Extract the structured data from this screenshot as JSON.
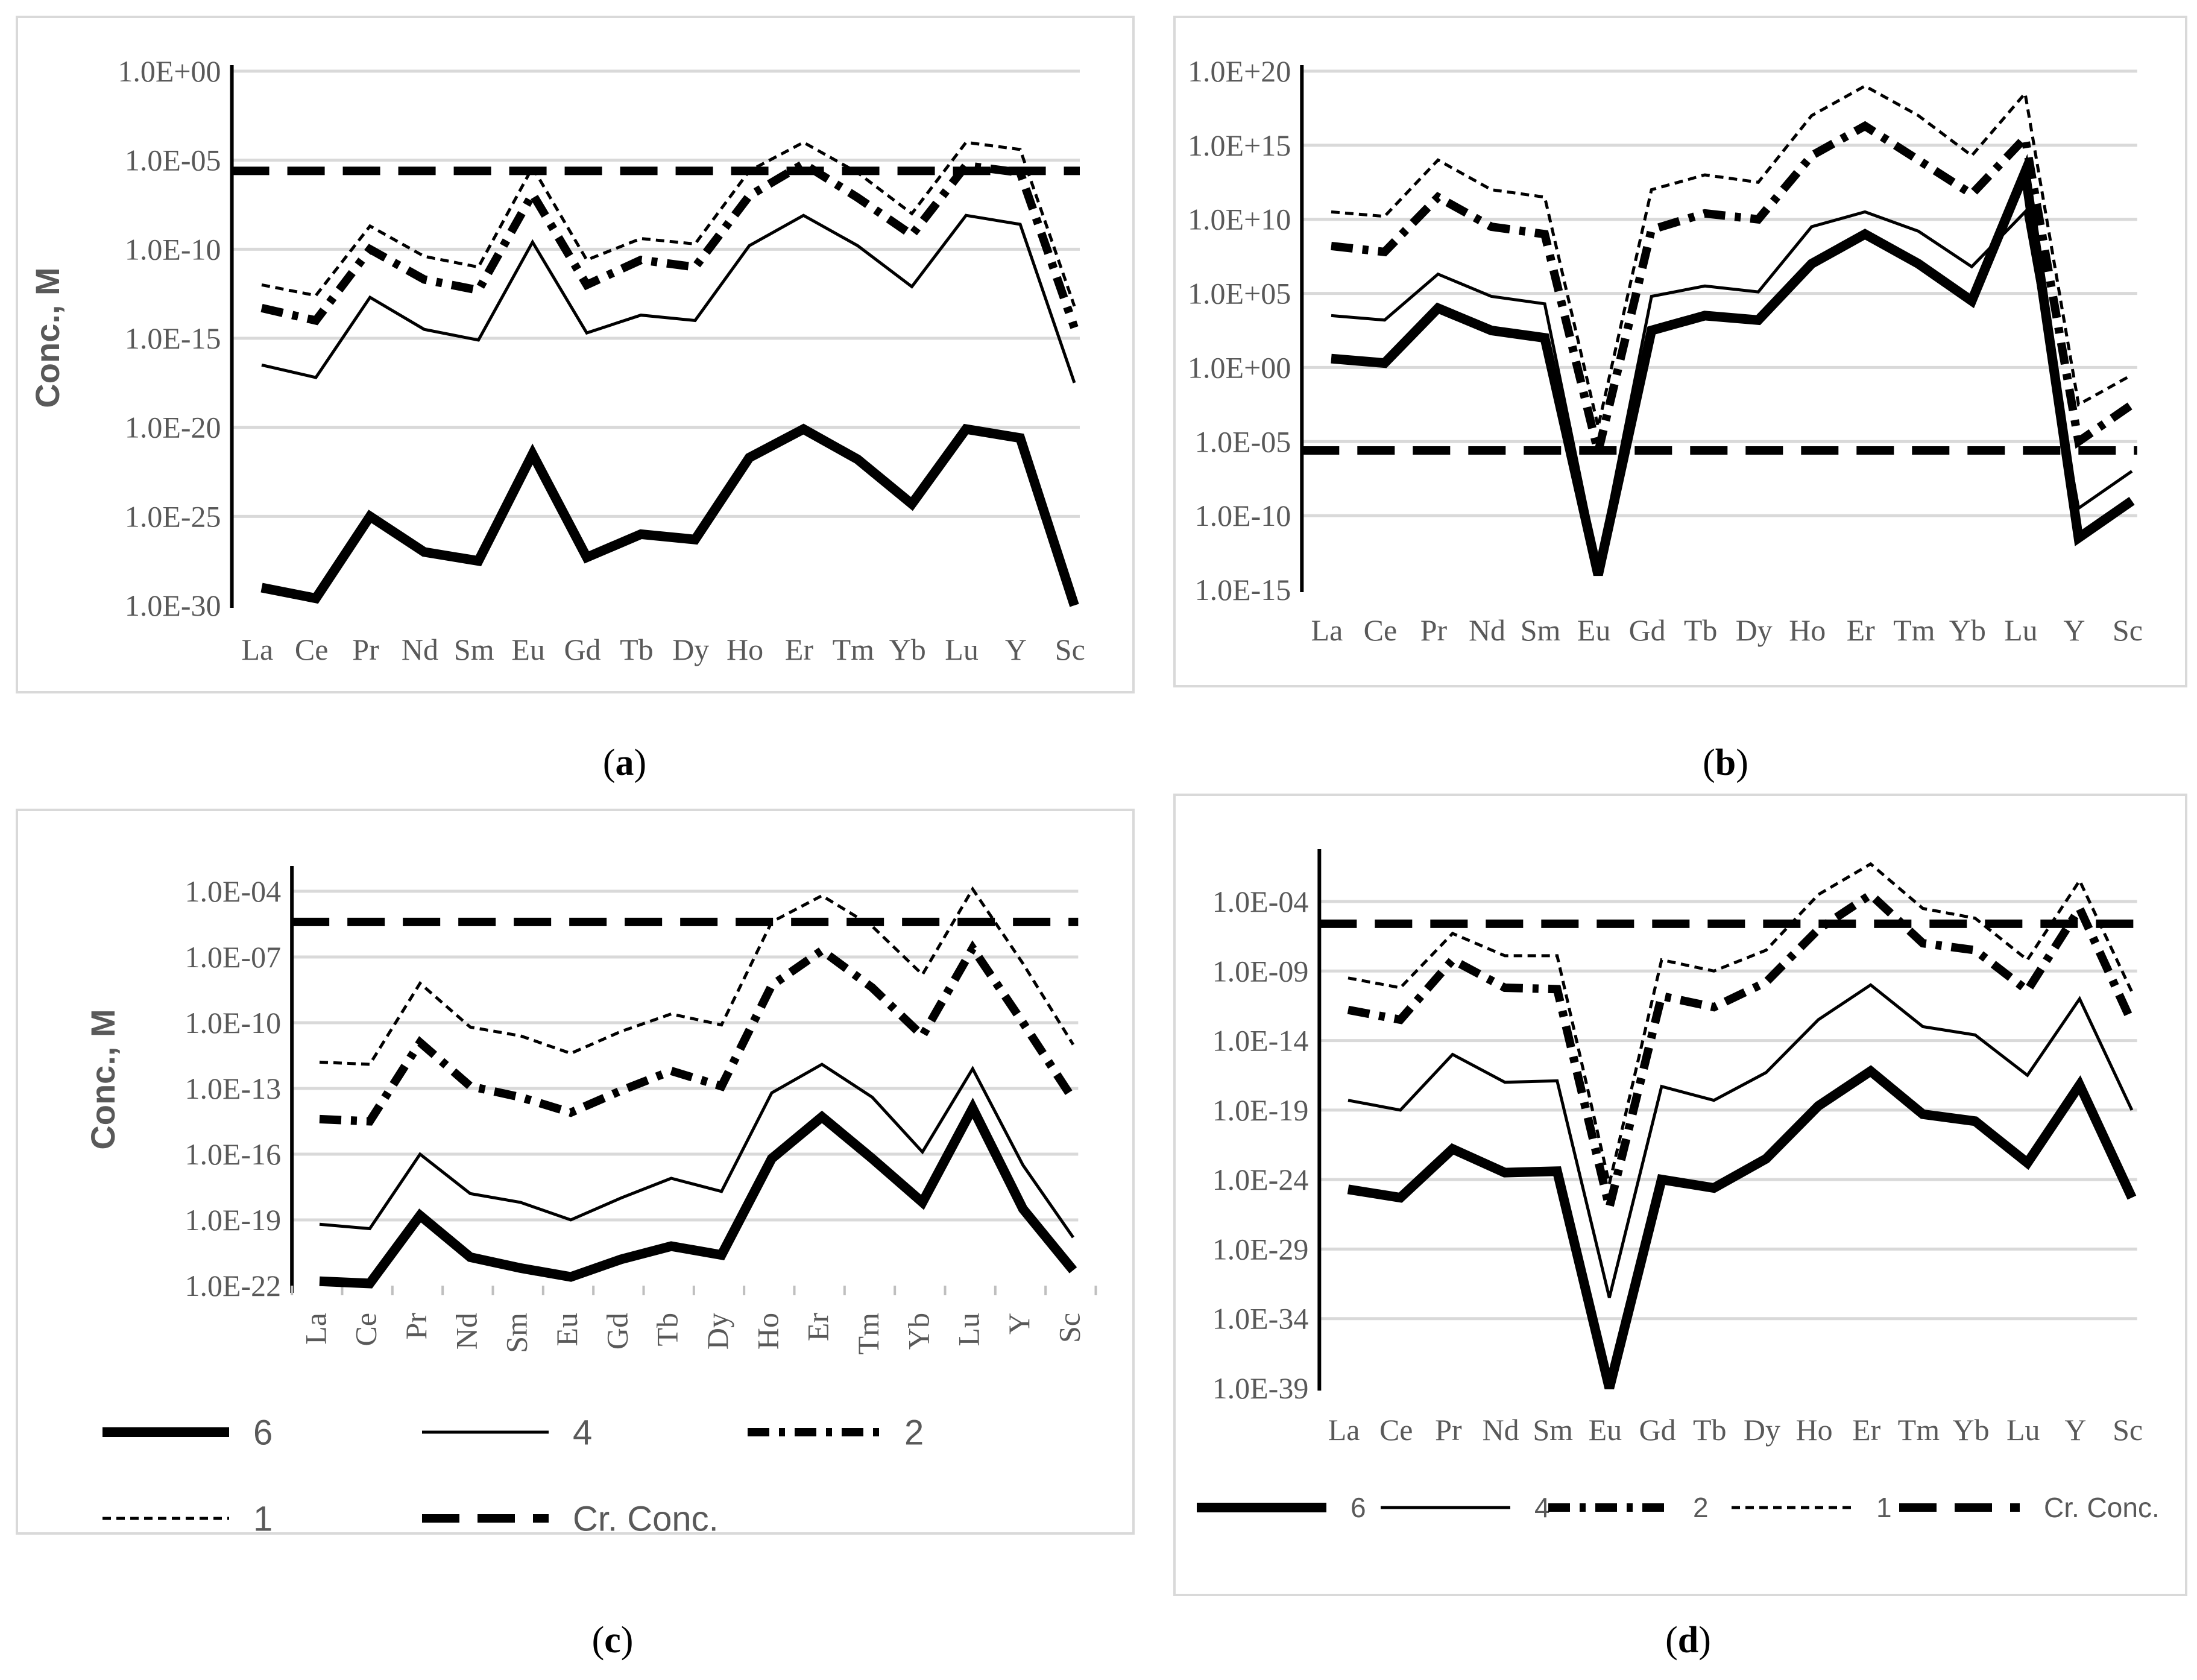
{
  "styles": {
    "6": {
      "color": "#000000",
      "width": 16,
      "dash": ""
    },
    "4": {
      "color": "#000000",
      "width": 5,
      "dash": ""
    },
    "2": {
      "color": "#000000",
      "width": 14,
      "dash": "36 16 10 16"
    },
    "1": {
      "color": "#000000",
      "width": 5,
      "dash": "14 9"
    },
    "cr": {
      "color": "#000000",
      "width": 14,
      "dash": "62 30"
    }
  },
  "chart_data": [
    {
      "id": "a",
      "type": "line",
      "caption": "(a)",
      "caption_letter": "a",
      "ylabel": "Conc., M",
      "yscale": "log10",
      "ylim": [
        -30,
        0
      ],
      "yticks": [
        "1.0E+00",
        "1.0E-05",
        "1.0E-10",
        "1.0E-15",
        "1.0E-20",
        "1.0E-25",
        "1.0E-30"
      ],
      "ytick_values": [
        0,
        -5,
        -10,
        -15,
        -20,
        -25,
        -30
      ],
      "categories": [
        "La",
        "Ce",
        "Pr",
        "Nd",
        "Sm",
        "Eu",
        "Gd",
        "Tb",
        "Dy",
        "Ho",
        "Er",
        "Tm",
        "Yb",
        "Lu",
        "Y",
        "Sc"
      ],
      "series": [
        {
          "name": "6",
          "log10_values": [
            -29,
            -29.6,
            -25,
            -27,
            -27.5,
            -21.5,
            -27.3,
            -26,
            -26.3,
            -21.7,
            -20.1,
            -21.8,
            -24.3,
            -20.1,
            -20.6,
            -30
          ]
        },
        {
          "name": "4",
          "log10_values": [
            -16.5,
            -17.2,
            -12.7,
            -14.5,
            -15.1,
            -9.6,
            -14.7,
            -13.7,
            -14,
            -9.8,
            -8.1,
            -9.8,
            -12.1,
            -8.1,
            -8.6,
            -17.5
          ]
        },
        {
          "name": "2",
          "log10_values": [
            -13.3,
            -14,
            -10,
            -11.7,
            -12.3,
            -6.9,
            -12,
            -10.6,
            -11,
            -7,
            -5.2,
            -7.1,
            -9.2,
            -5.3,
            -5.7,
            -14.4
          ]
        },
        {
          "name": "1",
          "log10_values": [
            -12,
            -12.6,
            -8.7,
            -10.4,
            -11,
            -5.4,
            -10.6,
            -9.4,
            -9.7,
            -5.6,
            -4,
            -5.7,
            -8,
            -4,
            -4.4,
            -13.2
          ]
        },
        {
          "name": "Cr. Conc.",
          "log10_values": [
            -5.6,
            -5.6,
            -5.6,
            -5.6,
            -5.6,
            -5.6,
            -5.6,
            -5.6,
            -5.6,
            -5.6,
            -5.6,
            -5.6,
            -5.6,
            -5.6,
            -5.6,
            -5.6
          ]
        }
      ]
    },
    {
      "id": "b",
      "type": "line",
      "caption": "(b)",
      "caption_letter": "b",
      "ylabel": "",
      "yscale": "log10",
      "ylim": [
        -15,
        20
      ],
      "yticks": [
        "1.0E+20",
        "1.0E+15",
        "1.0E+10",
        "1.0E+05",
        "1.0E+00",
        "1.0E-05",
        "1.0E-10",
        "1.0E-15"
      ],
      "ytick_values": [
        20,
        15,
        10,
        5,
        0,
        -5,
        -10,
        -15
      ],
      "categories": [
        "La",
        "Ce",
        "Pr",
        "Nd",
        "Sm",
        "Eu",
        "Gd",
        "Tb",
        "Dy",
        "Ho",
        "Er",
        "Tm",
        "Yb",
        "Lu",
        "Y",
        "Sc"
      ],
      "series": [
        {
          "name": "6",
          "log10_values": [
            0.6,
            0.3,
            4,
            2.5,
            2,
            -14,
            2.5,
            3.5,
            3.2,
            7,
            9,
            7,
            4.5,
            13.2,
            -11.5,
            -9
          ]
        },
        {
          "name": "4",
          "log10_values": [
            3.5,
            3.2,
            6.3,
            4.8,
            4.3,
            -13.3,
            4.8,
            5.5,
            5.1,
            9.5,
            10.5,
            9.2,
            6.8,
            10.5,
            -9.5,
            -7
          ]
        },
        {
          "name": "2",
          "log10_values": [
            8.2,
            7.8,
            11.5,
            9.5,
            9,
            -5.7,
            9.3,
            10.4,
            10,
            14.3,
            16.3,
            14,
            11.7,
            15.5,
            -5,
            -2.5
          ]
        },
        {
          "name": "1",
          "log10_values": [
            10.5,
            10.2,
            14,
            12,
            11.5,
            -4,
            12,
            13,
            12.5,
            17,
            19,
            17,
            14.3,
            18.5,
            -2.5,
            -0.5
          ]
        },
        {
          "name": "Cr. Conc.",
          "log10_values": [
            -5.6,
            -5.6,
            -5.6,
            -5.6,
            -5.6,
            -5.6,
            -5.6,
            -5.6,
            -5.6,
            -5.6,
            -5.6,
            -5.6,
            -5.6,
            -5.6,
            -5.6,
            -5.6
          ]
        }
      ]
    },
    {
      "id": "c",
      "type": "line",
      "caption": "(c)",
      "caption_letter": "c",
      "ylabel": "Conc., M",
      "yscale": "log10",
      "ylim": [
        -22,
        -3
      ],
      "yticks": [
        "1.0E-04",
        "1.0E-07",
        "1.0E-10",
        "1.0E-13",
        "1.0E-16",
        "1.0E-19",
        "1.0E-22"
      ],
      "ytick_values": [
        -4,
        -7,
        -10,
        -13,
        -16,
        -19,
        -22
      ],
      "categories": [
        "La",
        "Ce",
        "Pr",
        "Nd",
        "Sm",
        "Eu",
        "Gd",
        "Tb",
        "Dy",
        "Ho",
        "Er",
        "Tm",
        "Yb",
        "Lu",
        "Y",
        "Sc"
      ],
      "series": [
        {
          "name": "6",
          "log10_values": [
            -21.8,
            -21.9,
            -18.8,
            -20.7,
            -21.2,
            -21.6,
            -20.8,
            -20.2,
            -20.6,
            -16.2,
            -14.3,
            -16.2,
            -18.2,
            -13.9,
            -18.5,
            -21.3
          ]
        },
        {
          "name": "4",
          "log10_values": [
            -19.2,
            -19.4,
            -16,
            -17.8,
            -18.2,
            -19,
            -18,
            -17.1,
            -17.7,
            -13.2,
            -11.9,
            -13.4,
            -15.9,
            -12.1,
            -16.5,
            -19.8
          ]
        },
        {
          "name": "2",
          "log10_values": [
            -14.4,
            -14.5,
            -10.9,
            -12.9,
            -13.4,
            -14.1,
            -13.1,
            -12.2,
            -12.9,
            -8.3,
            -6.7,
            -8.4,
            -10.6,
            -6.6,
            -10,
            -13.5
          ]
        },
        {
          "name": "1",
          "log10_values": [
            -11.8,
            -11.9,
            -8.2,
            -10.2,
            -10.6,
            -11.4,
            -10.4,
            -9.6,
            -10.1,
            -5.4,
            -4.2,
            -5.6,
            -7.8,
            -3.9,
            -7.3,
            -11
          ]
        },
        {
          "name": "Cr. Conc.",
          "log10_values": [
            -5.4,
            -5.4,
            -5.4,
            -5.4,
            -5.4,
            -5.4,
            -5.4,
            -5.4,
            -5.4,
            -5.4,
            -5.4,
            -5.4,
            -5.4,
            -5.4,
            -5.4,
            -5.4
          ]
        }
      ],
      "legend": {
        "placement": "below",
        "rows": [
          [
            "6",
            "4",
            "2"
          ],
          [
            "1",
            "Cr. Conc."
          ]
        ]
      }
    },
    {
      "id": "d",
      "type": "line",
      "caption": "(d)",
      "caption_letter": "d",
      "ylabel": "",
      "yscale": "log10",
      "ylim": [
        -39,
        0.5
      ],
      "yticks": [
        "1.0E-04",
        "1.0E-09",
        "1.0E-14",
        "1.0E-19",
        "1.0E-24",
        "1.0E-29",
        "1.0E-34",
        "1.0E-39"
      ],
      "ytick_values": [
        -4,
        -9,
        -14,
        -19,
        -24,
        -29,
        -34,
        -39
      ],
      "categories": [
        "La",
        "Ce",
        "Pr",
        "Nd",
        "Sm",
        "Eu",
        "Gd",
        "Tb",
        "Dy",
        "Ho",
        "Er",
        "Tm",
        "Yb",
        "Lu",
        "Y",
        "Sc"
      ],
      "series": [
        {
          "name": "6",
          "log10_values": [
            -24.7,
            -25.3,
            -21.8,
            -23.5,
            -23.4,
            -39,
            -24,
            -24.6,
            -22.5,
            -18.7,
            -16.2,
            -19.3,
            -19.8,
            -22.8,
            -17.2,
            -25.3
          ]
        },
        {
          "name": "4",
          "log10_values": [
            -18.3,
            -19,
            -15,
            -17,
            -16.9,
            -32.5,
            -17.3,
            -18.3,
            -16.3,
            -12.5,
            -10,
            -13,
            -13.6,
            -16.5,
            -11,
            -19
          ]
        },
        {
          "name": "2",
          "log10_values": [
            -11.8,
            -12.5,
            -8.2,
            -10.2,
            -10.3,
            -26,
            -10.8,
            -11.6,
            -9.8,
            -6,
            -3.5,
            -7,
            -7.5,
            -10.4,
            -4.5,
            -12.7
          ]
        },
        {
          "name": "1",
          "log10_values": [
            -9.5,
            -10.2,
            -6.3,
            -7.9,
            -7.9,
            -24.3,
            -8.2,
            -9,
            -7.5,
            -3.5,
            -1.3,
            -4.5,
            -5.2,
            -8.2,
            -2.5,
            -10.5
          ]
        },
        {
          "name": "Cr. Conc.",
          "log10_values": [
            -5.6,
            -5.6,
            -5.6,
            -5.6,
            -5.6,
            -5.6,
            -5.6,
            -5.6,
            -5.6,
            -5.6,
            -5.6,
            -5.6,
            -5.6,
            -5.6,
            -5.6,
            -5.6
          ]
        }
      ],
      "legend": {
        "placement": "below",
        "rows": [
          [
            "6",
            "4",
            "2",
            "1",
            "Cr. Conc."
          ]
        ]
      }
    }
  ]
}
